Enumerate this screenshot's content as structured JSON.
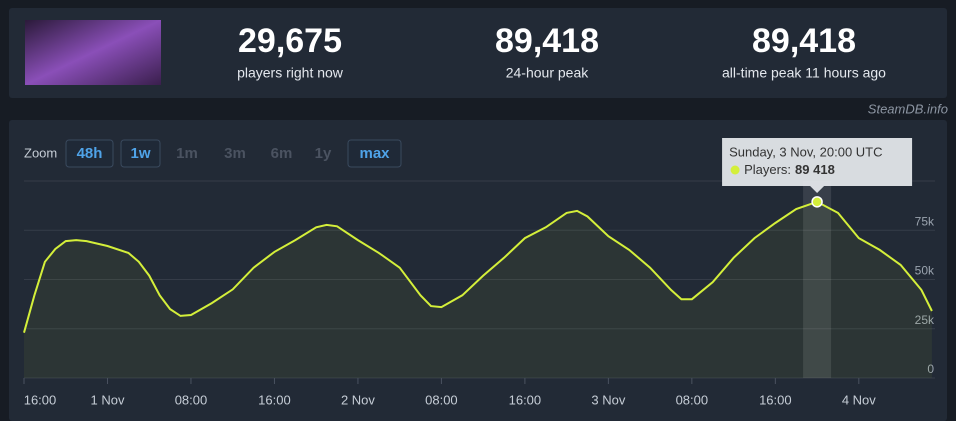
{
  "stats": [
    {
      "value": "29,675",
      "label": "players right now"
    },
    {
      "value": "89,418",
      "label": "24-hour peak"
    },
    {
      "value": "89,418",
      "label": "all-time peak 11 hours ago"
    }
  ],
  "credit": "SteamDB.info",
  "zoom": {
    "label": "Zoom",
    "buttons": [
      "48h",
      "1w",
      "1m",
      "3m",
      "6m",
      "1y",
      "max"
    ],
    "enabled": [
      true,
      true,
      false,
      false,
      false,
      false,
      true
    ]
  },
  "chart_data": {
    "type": "line",
    "x": [
      -8,
      -7,
      -6,
      -5,
      -4,
      -3,
      -2,
      0,
      2,
      3,
      4,
      5,
      6,
      7,
      8,
      10,
      12,
      14,
      16,
      18,
      20,
      21,
      22,
      24,
      26,
      28,
      30,
      31,
      32,
      34,
      36,
      38,
      40,
      42,
      44,
      45,
      46,
      48,
      50,
      52,
      54,
      55,
      56,
      58,
      60,
      62,
      64,
      66,
      68,
      70,
      72,
      74,
      76,
      78,
      79
    ],
    "series": [
      {
        "color": "#d4ef3a",
        "values": [
          23000,
          42000,
          59000,
          65500,
          69500,
          70000,
          69500,
          67000,
          63500,
          59000,
          52000,
          42000,
          35000,
          31500,
          32000,
          38000,
          45000,
          56000,
          64000,
          70000,
          76500,
          77700,
          77000,
          70000,
          63500,
          56000,
          42000,
          36500,
          36000,
          42000,
          52000,
          61000,
          71000,
          76500,
          83800,
          84800,
          82000,
          72000,
          65000,
          56000,
          44700,
          40000,
          40000,
          48700,
          61000,
          71000,
          78700,
          85800,
          89418,
          83800,
          71000,
          65000,
          57400,
          44700,
          34000
        ]
      }
    ],
    "xlim": [
      -8,
      79.3
    ],
    "xticks": [
      {
        "value": -8,
        "label": "16:00"
      },
      {
        "value": 0,
        "label": "1 Nov"
      },
      {
        "value": 8,
        "label": "08:00"
      },
      {
        "value": 16,
        "label": "16:00"
      },
      {
        "value": 24,
        "label": "2 Nov"
      },
      {
        "value": 32,
        "label": "08:00"
      },
      {
        "value": 40,
        "label": "16:00"
      },
      {
        "value": 48,
        "label": "3 Nov"
      },
      {
        "value": 56,
        "label": "08:00"
      },
      {
        "value": 64,
        "label": "16:00"
      },
      {
        "value": 72,
        "label": "4 Nov"
      }
    ],
    "ylim": [
      0,
      100000
    ],
    "yticks": [
      0,
      {
        "value": 25000,
        "label": "25k"
      },
      {
        "value": 50000,
        "label": "50k"
      },
      {
        "value": 75000,
        "label": "75k"
      }
    ],
    "grid": true,
    "tooltip": {
      "title": "Sunday, 3 Nov, 20:00 UTC",
      "label": "Players:",
      "point": 48,
      "value_label": "89 418"
    }
  }
}
